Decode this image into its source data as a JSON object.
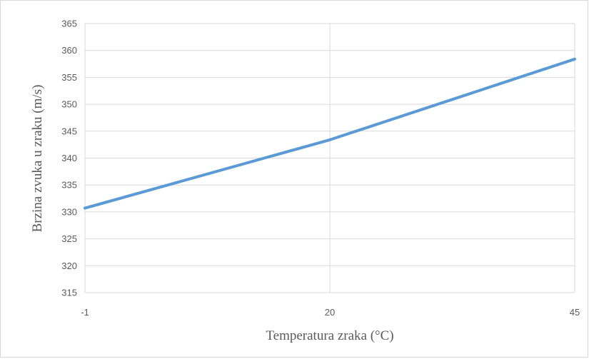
{
  "chart_data": {
    "type": "line",
    "title": "",
    "xlabel": "Temperatura  zraka (°C)",
    "ylabel": "Brzina  zvuka  u  zraku  (m/s)",
    "x": [
      -1,
      20,
      45
    ],
    "x_tick_labels": [
      "-1",
      "20",
      "45"
    ],
    "ylim": [
      315,
      365
    ],
    "y_ticks": [
      315,
      320,
      325,
      330,
      335,
      340,
      345,
      350,
      355,
      360,
      365
    ],
    "grid": true,
    "legend": "none",
    "series": [
      {
        "values": [
          330.7,
          343.4,
          358.4
        ],
        "color": "#5b9bd5"
      }
    ],
    "colors": {
      "grid": "#d9d9d9",
      "text": "#595959",
      "border": "#d9d9d9"
    }
  }
}
